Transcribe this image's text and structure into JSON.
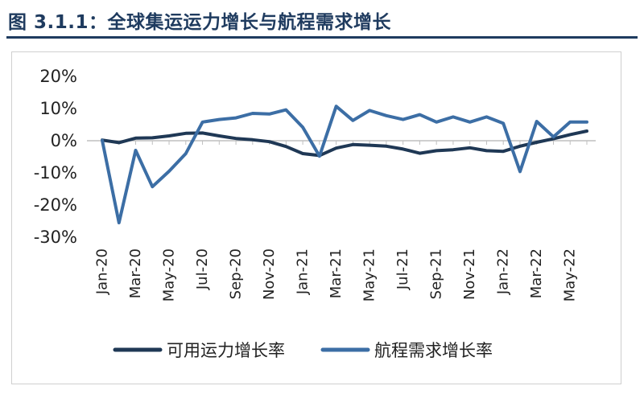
{
  "figure": {
    "title": "图 3.1.1：全球集运运力增长与航程需求增长"
  },
  "chart_data": {
    "type": "line",
    "title": "图 3.1.1：全球集运运力增长与航程需求增长",
    "xlabel": "",
    "ylabel": "",
    "ylim": [
      -30,
      20
    ],
    "y_unit": "%",
    "y_ticks": [
      "20%",
      "10%",
      "0%",
      "-10%",
      "-20%",
      "-30%"
    ],
    "x": [
      "Jan-20",
      "Feb-20",
      "Mar-20",
      "Apr-20",
      "May-20",
      "Jun-20",
      "Jul-20",
      "Aug-20",
      "Sep-20",
      "Oct-20",
      "Nov-20",
      "Dec-20",
      "Jan-21",
      "Feb-21",
      "Mar-21",
      "Apr-21",
      "May-21",
      "Jun-21",
      "Jul-21",
      "Aug-21",
      "Sep-21",
      "Oct-21",
      "Nov-21",
      "Dec-21",
      "Jan-22",
      "Feb-22",
      "Mar-22",
      "Apr-22",
      "May-22",
      "Jun-22"
    ],
    "x_tick_labels": [
      "Jan-20",
      "Mar-20",
      "May-20",
      "Jul-20",
      "Sep-20",
      "Nov-20",
      "Jan-21",
      "Mar-21",
      "May-21",
      "Jul-21",
      "Sep-21",
      "Nov-21",
      "Jan-22",
      "Mar-22",
      "May-22"
    ],
    "grid": false,
    "legend_position": "bottom",
    "series": [
      {
        "name": "可用运力增长率",
        "color": "#1f3855",
        "values": [
          0.2,
          -0.6,
          0.8,
          0.9,
          1.5,
          2.3,
          2.4,
          1.5,
          0.7,
          0.3,
          -0.3,
          -1.8,
          -4.0,
          -4.6,
          -2.3,
          -1.2,
          -1.4,
          -1.7,
          -2.6,
          -3.9,
          -3.1,
          -2.8,
          -2.2,
          -3.1,
          -3.3,
          -1.7,
          -0.5,
          0.6,
          1.9,
          3.0
        ]
      },
      {
        "name": "航程需求增长率",
        "color": "#3c6ea5",
        "values": [
          0.1,
          -25.5,
          -3.0,
          -14.3,
          -9.5,
          -4.0,
          5.8,
          6.6,
          7.1,
          8.5,
          8.3,
          9.6,
          4.2,
          -4.8,
          10.7,
          6.3,
          9.4,
          7.8,
          6.6,
          8.1,
          5.8,
          7.4,
          5.8,
          7.4,
          5.4,
          -9.6,
          6.0,
          1.2,
          5.8,
          5.8
        ]
      }
    ]
  }
}
